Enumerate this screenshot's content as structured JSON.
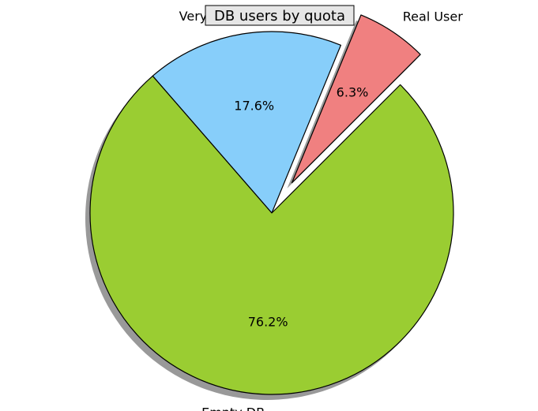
{
  "chart_data": {
    "type": "pie",
    "title": "DB users by quota",
    "slices": [
      {
        "label": "Real User",
        "value": 6.3,
        "pct_label": "6.3%",
        "color": "#f08080",
        "explode": true
      },
      {
        "label": "Very little",
        "value": 17.6,
        "pct_label": "17.6%",
        "color": "#87cefa",
        "explode": false
      },
      {
        "label": "Empty DB",
        "value": 76.2,
        "pct_label": "76.2%",
        "color": "#9acd32",
        "explode": false
      }
    ],
    "shadow": true,
    "edge_color": "#000000"
  }
}
